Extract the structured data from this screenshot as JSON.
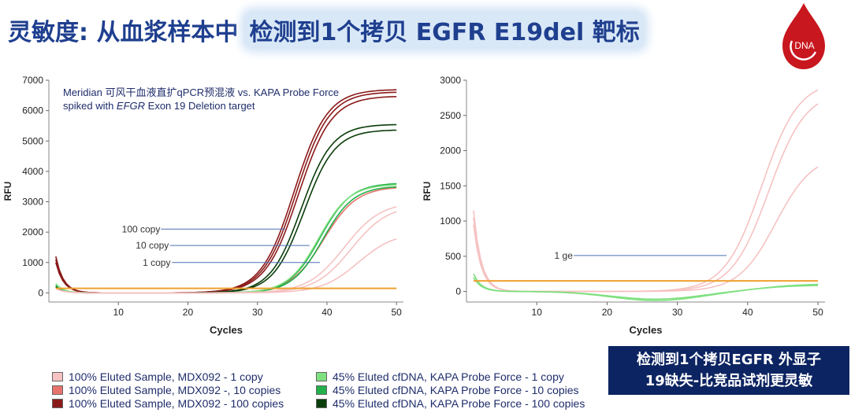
{
  "title": {
    "prefix": "灵敏度: 从血浆样本中",
    "highlight": "检测到1个拷贝 EGFR E19del 靶标"
  },
  "logo": {
    "text": "DNA",
    "color": "#c8171e"
  },
  "chart_data": [
    {
      "type": "line",
      "xlabel": "Cycles",
      "ylabel": "RFU",
      "xlim": [
        0,
        51
      ],
      "ylim": [
        -300,
        7000
      ],
      "xticks": [
        10,
        20,
        30,
        40,
        50
      ],
      "yticks": [
        0,
        1000,
        2000,
        3000,
        4000,
        5000,
        6000,
        7000
      ],
      "annotation_line1": "Meridian 可风干血液直扩qPCR预混液 vs. KAPA Probe Force",
      "annotation_line2_prefix": "spiked with ",
      "annotation_line2_italic": "EFGR",
      "annotation_line2_suffix": " Exon 19 Deletion target",
      "threshold": 150,
      "threshold_color": "#f0a030",
      "labels": [
        {
          "text": "100 copy",
          "x": 10.5,
          "y": 2100,
          "x_end": 34
        },
        {
          "text": "10 copy",
          "x": 12.5,
          "y": 1560,
          "x_end": 37.5
        },
        {
          "text": "1 copy",
          "x": 13.5,
          "y": 1000,
          "x_end": 39
        }
      ],
      "series": [
        {
          "name": "100% Eluted Sample, MDX092 - 100 copies",
          "color": "#8b1a1a",
          "max": 6700,
          "mid": 35.3,
          "k": 0.42,
          "start": 1100
        },
        {
          "name": "100% Eluted Sample, MDX092 - 100 copies",
          "color": "#8b1a1a",
          "max": 6620,
          "mid": 35.6,
          "k": 0.42,
          "start": 1200
        },
        {
          "name": "100% Eluted Sample, MDX092 - 100 copies",
          "color": "#8b1a1a",
          "max": 6480,
          "mid": 35.9,
          "k": 0.42,
          "start": 1000
        },
        {
          "name": "45% Eluted cfDNA, KAPA Probe Force - 100 copies",
          "color": "#0a3d0a",
          "max": 5550,
          "mid": 36.3,
          "k": 0.45,
          "start": 200
        },
        {
          "name": "45% Eluted cfDNA, KAPA Probe Force - 100 copies",
          "color": "#0a3d0a",
          "max": 5370,
          "mid": 36.7,
          "k": 0.45,
          "start": 200
        },
        {
          "name": "100% Eluted Sample, MDX092 -, 10 copies",
          "color": "#e8736e",
          "max": 3500,
          "mid": 39.5,
          "k": 0.42,
          "start": 150
        },
        {
          "name": "45% Eluted cfDNA, KAPA Probe Force - 10 copies",
          "color": "#22b04a",
          "max": 3620,
          "mid": 39.0,
          "k": 0.45,
          "start": 250
        },
        {
          "name": "45% Eluted cfDNA, KAPA Probe Force - 10 copies",
          "color": "#22b04a",
          "max": 3520,
          "mid": 39.4,
          "k": 0.45,
          "start": 250
        },
        {
          "name": "45% Eluted cfDNA, KAPA Probe Force - 1 copy",
          "color": "#7fe07f",
          "max": 3580,
          "mid": 38.8,
          "k": 0.45,
          "start": 300
        },
        {
          "name": "100% Eluted Sample, MDX092 - 1 copy",
          "color": "#f6c2c2",
          "max": 3000,
          "mid": 42.5,
          "k": 0.38,
          "start": 150
        },
        {
          "name": "100% Eluted Sample, MDX092 - 1 copy",
          "color": "#f6c2c2",
          "max": 2900,
          "mid": 43.5,
          "k": 0.38,
          "start": 150
        },
        {
          "name": "100% Eluted Sample, MDX092 - 1 copy",
          "color": "#f6c2c2",
          "max": 2000,
          "mid": 44.5,
          "k": 0.38,
          "start": 150
        }
      ]
    },
    {
      "type": "line",
      "xlabel": "Cycles",
      "ylabel": "RFU",
      "xlim": [
        0,
        51
      ],
      "ylim": [
        -150,
        3000
      ],
      "xticks": [
        10,
        20,
        30,
        40,
        50
      ],
      "yticks": [
        0,
        500,
        1000,
        1500,
        2000,
        2500,
        3000
      ],
      "threshold": 150,
      "threshold_color": "#f0a030",
      "labels": [
        {
          "text": "1 ge",
          "x": 12.5,
          "y": 510,
          "x_end": 37
        }
      ],
      "series": [
        {
          "name": "100% Eluted Sample, MDX092 - 1 copy",
          "color": "#f6c2c2",
          "max": 3000,
          "mid": 42.0,
          "k": 0.38,
          "start": 1150
        },
        {
          "name": "100% Eluted Sample, MDX092 - 1 copy",
          "color": "#f6c2c2",
          "max": 2850,
          "mid": 43.0,
          "k": 0.38,
          "start": 1050
        },
        {
          "name": "100% Eluted Sample, MDX092 - 1 copy",
          "color": "#f6c2c2",
          "max": 1950,
          "mid": 44.0,
          "k": 0.38,
          "start": 950
        },
        {
          "name": "45% Eluted cfDNA, KAPA Probe Force - 1 copy",
          "color": "#7fe07f",
          "max": 110,
          "mid": 42.0,
          "k": 0.3,
          "start": 250,
          "dip": 130
        },
        {
          "name": "45% Eluted cfDNA, KAPA Probe Force - 1 copy",
          "color": "#7fe07f",
          "max": 90,
          "mid": 41.0,
          "k": 0.3,
          "start": 200,
          "dip": 110
        }
      ]
    }
  ],
  "legend_left": [
    {
      "label": "100% Eluted Sample, MDX092 - 1 copy",
      "color": "#f6c2c2"
    },
    {
      "label": "100% Eluted Sample, MDX092 -, 10 copies",
      "color": "#e8736e"
    },
    {
      "label": "100% Eluted Sample, MDX092 - 100 copies",
      "color": "#8b1a1a"
    }
  ],
  "legend_right": [
    {
      "label": "45% Eluted cfDNA, KAPA Probe Force -  1 copy",
      "color": "#7fe07f"
    },
    {
      "label": "45% Eluted cfDNA, KAPA Probe Force - 10 copies",
      "color": "#22b04a"
    },
    {
      "label": "45% Eluted cfDNA, KAPA Probe Force -  100 copies",
      "color": "#0a3d0a"
    }
  ],
  "callout": {
    "line1": "检测到1个拷贝EGFR 外显子",
    "line2": "19缺失-比竞品试剂更灵敏"
  }
}
